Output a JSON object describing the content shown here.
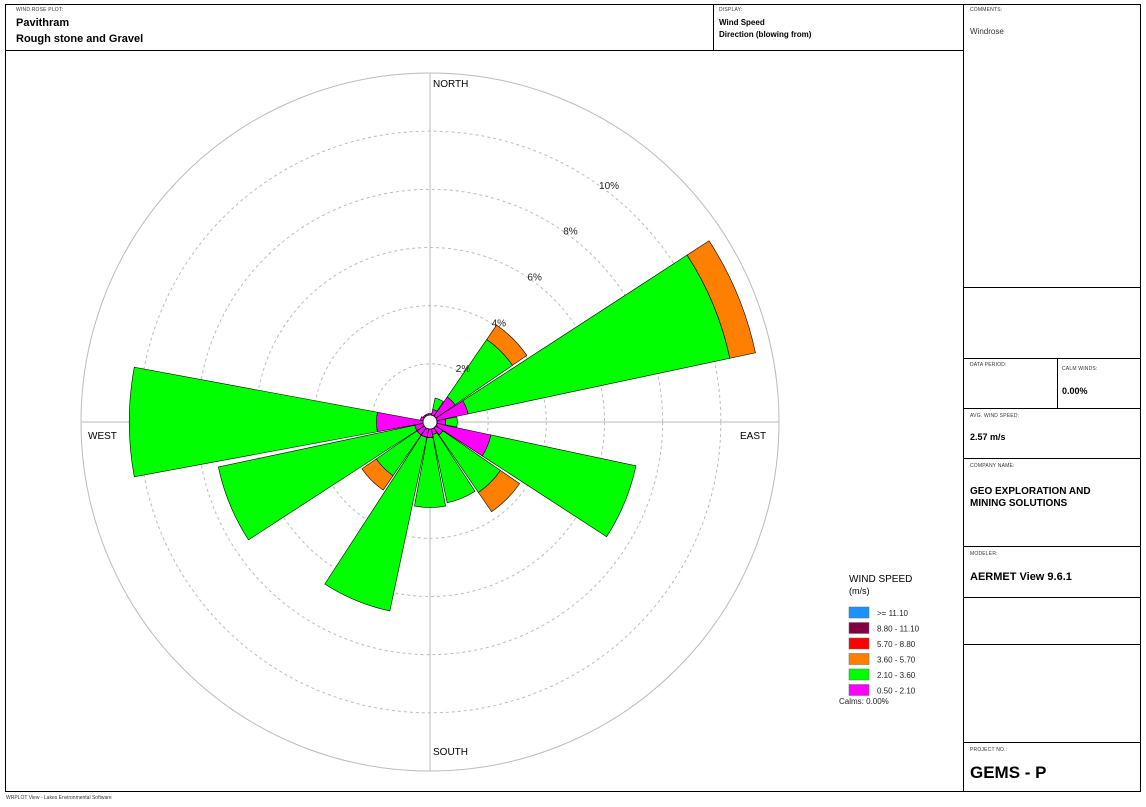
{
  "header": {
    "plot_label": "WIND ROSE PLOT:",
    "site_name": "Pavithram",
    "site_subtitle": "Rough stone and Gravel",
    "display_label": "DISPLAY:",
    "display_line1": "Wind Speed",
    "display_line2": "Direction (blowing from)"
  },
  "sidebar": {
    "comments_label": "COMMENTS:",
    "comments_value": "Windrose",
    "data_period_label": "DATA PERIOD:",
    "data_period_value": "",
    "calm_label": "CALM WINDS:",
    "calm_value": "0.00%",
    "avg_speed_label": "AVG. WIND SPEED:",
    "avg_speed_value": "2.57 m/s",
    "company_label": "COMPANY NAME:",
    "company_line1": "GEO EXPLORATION AND",
    "company_line2": "MINING SOLUTIONS",
    "modeler_label": "MODELER:",
    "modeler_value": "AERMET View 9.6.1",
    "project_label": "PROJECT NO.:",
    "project_value": "GEMS - P"
  },
  "footer": {
    "text": "WRPLOT View - Lakes Environmental Software"
  },
  "chart_data": {
    "type": "polar-bar",
    "title": "",
    "direction_labels": {
      "north": "NORTH",
      "south": "SOUTH",
      "east": "EAST",
      "west": "WEST"
    },
    "ring_percent": [
      2,
      4,
      6,
      8,
      10
    ],
    "ring_labels": [
      "2%",
      "4%",
      "6%",
      "8%",
      "10%"
    ],
    "max_percent": 12,
    "grid": true,
    "legend": {
      "title_line1": "WIND SPEED",
      "title_line2": "(m/s)",
      "placement": "bottom-right",
      "calms": "Calms: 0.00%",
      "classes": [
        {
          "label": ">= 11.10",
          "color": "#1e90ff"
        },
        {
          "label": "8.80 - 11.10",
          "color": "#800040"
        },
        {
          "label": "5.70 - 8.80",
          "color": "#ff0000"
        },
        {
          "label": "3.60 - 5.70",
          "color": "#ff8000"
        },
        {
          "label": "2.10 - 3.60",
          "color": "#00ff00"
        },
        {
          "label": "0.50 - 2.10",
          "color": "#ff00ff"
        }
      ]
    },
    "series_colors": {
      "0.50 - 2.10": "#ff00ff",
      "2.10 - 3.60": "#00ff00",
      "3.60 - 5.70": "#ff8000"
    },
    "sectors": [
      {
        "dir": "N",
        "deg": 0,
        "magenta": 0.05,
        "green": 0.0,
        "orange": 0.0
      },
      {
        "dir": "NNE",
        "deg": 22.5,
        "magenta": 0.2,
        "green": 0.4,
        "orange": 0.0
      },
      {
        "dir": "NE",
        "deg": 45,
        "magenta": 0.8,
        "green": 2.4,
        "orange": 0.6
      },
      {
        "dir": "ENE",
        "deg": 67.5,
        "magenta": 1.1,
        "green": 9.2,
        "orange": 0.9
      },
      {
        "dir": "E",
        "deg": 90,
        "magenta": 0.3,
        "green": 0.4,
        "orange": 0.0
      },
      {
        "dir": "ESE",
        "deg": 112.5,
        "magenta": 1.9,
        "green": 5.1,
        "orange": 0.0
      },
      {
        "dir": "SE",
        "deg": 135,
        "magenta": 0.3,
        "green": 2.4,
        "orange": 0.8
      },
      {
        "dir": "SSE",
        "deg": 157.5,
        "magenta": 0.2,
        "green": 2.4,
        "orange": 0.0
      },
      {
        "dir": "S",
        "deg": 180,
        "magenta": 0.3,
        "green": 2.4,
        "orange": 0.0
      },
      {
        "dir": "SSW",
        "deg": 202.5,
        "magenta": 0.3,
        "green": 6.1,
        "orange": 0.0
      },
      {
        "dir": "SW",
        "deg": 225,
        "magenta": 0.3,
        "green": 1.7,
        "orange": 0.6
      },
      {
        "dir": "WSW",
        "deg": 247.5,
        "magenta": 0.3,
        "green": 6.9,
        "orange": 0.0
      },
      {
        "dir": "W",
        "deg": 270,
        "magenta": 1.6,
        "green": 8.5,
        "orange": 0.0
      },
      {
        "dir": "WNW",
        "deg": 292.5,
        "magenta": 0.1,
        "green": 0.0,
        "orange": 0.0
      },
      {
        "dir": "NW",
        "deg": 315,
        "magenta": 0.05,
        "green": 0.0,
        "orange": 0.0
      },
      {
        "dir": "NNW",
        "deg": 337.5,
        "magenta": 0.05,
        "green": 0.0,
        "orange": 0.0
      }
    ]
  }
}
